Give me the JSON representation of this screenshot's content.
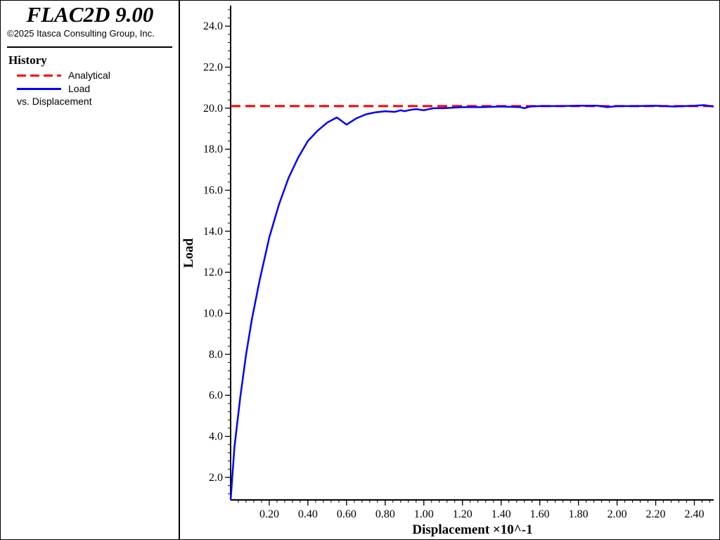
{
  "header": {
    "app_title": "FLAC2D 9.00",
    "copyright": "©2025 Itasca Consulting Group, Inc."
  },
  "legend": {
    "heading": "History",
    "items": [
      {
        "label": "Analytical",
        "color": "#ff0000",
        "style": "dashed"
      },
      {
        "label": "Load",
        "color": "#0000ff",
        "style": "solid"
      }
    ],
    "vs_label": "vs. Displacement"
  },
  "chart_data": {
    "type": "line",
    "title": "",
    "xlabel": "Displacement",
    "xlabel_suffix": "×10^-1",
    "ylabel": "Load",
    "xlim": [
      0.0,
      2.5
    ],
    "ylim": [
      0.9,
      25.0
    ],
    "x_ticks": [
      "0.20",
      "0.40",
      "0.60",
      "0.80",
      "1.00",
      "1.20",
      "1.40",
      "1.60",
      "1.80",
      "2.00",
      "2.20",
      "2.40"
    ],
    "y_ticks": [
      "2.0",
      "4.0",
      "6.0",
      "8.0",
      "10.0",
      "12.0",
      "14.0",
      "16.0",
      "18.0",
      "20.0",
      "22.0",
      "24.0"
    ],
    "grid": false,
    "series": [
      {
        "name": "Analytical",
        "color": "#ff0000",
        "dash": true,
        "x": [
          0.0,
          2.5
        ],
        "y": [
          20.1,
          20.1
        ]
      },
      {
        "name": "Load",
        "color": "#0000ff",
        "dash": false,
        "x": [
          0.0,
          0.02,
          0.05,
          0.08,
          0.11,
          0.15,
          0.2,
          0.25,
          0.3,
          0.35,
          0.4,
          0.45,
          0.5,
          0.55,
          0.6,
          0.65,
          0.7,
          0.75,
          0.8,
          0.85,
          0.88,
          0.9,
          0.93,
          0.96,
          1.0,
          1.05,
          1.1,
          1.2,
          1.3,
          1.4,
          1.5,
          1.52,
          1.55,
          1.6,
          1.7,
          1.8,
          1.9,
          1.95,
          2.0,
          2.1,
          2.2,
          2.3,
          2.35,
          2.4,
          2.45,
          2.48,
          2.5
        ],
        "y": [
          0.9,
          3.5,
          5.9,
          8.0,
          9.7,
          11.6,
          13.7,
          15.3,
          16.6,
          17.6,
          18.4,
          18.9,
          19.3,
          19.55,
          19.2,
          19.5,
          19.7,
          19.8,
          19.85,
          19.82,
          19.9,
          19.85,
          19.92,
          19.95,
          19.9,
          20.0,
          20.0,
          20.05,
          20.05,
          20.08,
          20.05,
          20.0,
          20.08,
          20.1,
          20.1,
          20.12,
          20.12,
          20.05,
          20.1,
          20.1,
          20.12,
          20.08,
          20.1,
          20.12,
          20.15,
          20.1,
          20.08
        ]
      }
    ]
  }
}
